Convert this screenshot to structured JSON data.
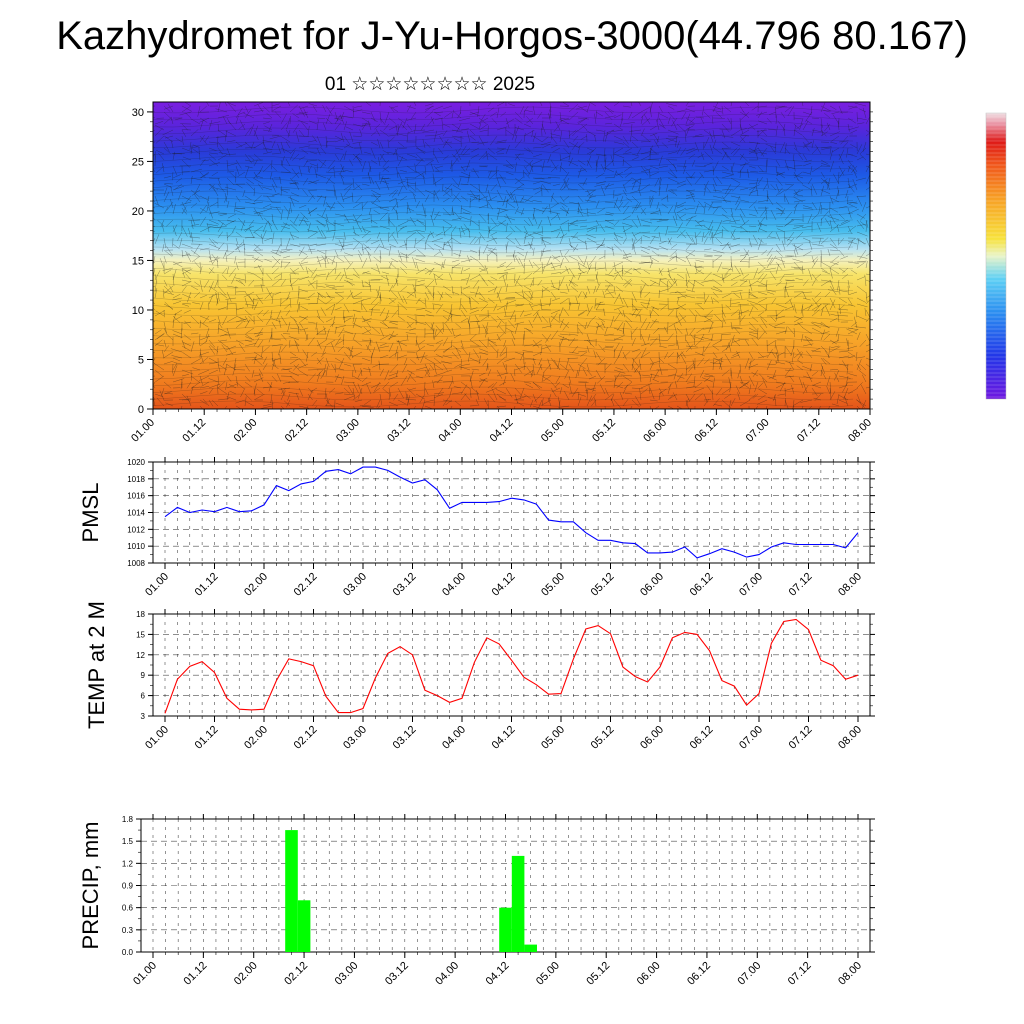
{
  "title": "Kazhydromet for J-Yu-Horgos-3000(44.796 80.167)",
  "subtitle": "01 ☆☆☆☆☆☆☆☆ 2025",
  "x_tick_labels": [
    "01.00",
    "01.12",
    "02.00",
    "02.12",
    "03.00",
    "03.12",
    "04.00",
    "04.12",
    "05.00",
    "05.12",
    "06.00",
    "06.12",
    "07.00",
    "07.12",
    "08.00"
  ],
  "chart_data": [
    {
      "type": "heatmap",
      "name": "cross-section",
      "x_categories": [
        "01.00",
        "01.12",
        "02.00",
        "02.12",
        "03.00",
        "03.12",
        "04.00",
        "04.12",
        "05.00",
        "05.12",
        "06.00",
        "06.12",
        "07.00",
        "07.12",
        "08.00"
      ],
      "y_ticks": [
        "0",
        "5",
        "10",
        "15",
        "20",
        "25",
        "30"
      ],
      "ylim": [
        0,
        31
      ],
      "colormap": [
        "#6a0fd8",
        "#3a2ee0",
        "#1f5ae8",
        "#2f8ef0",
        "#3cbcf0",
        "#9fdcf2",
        "#f5f2a8",
        "#f7e14a",
        "#f8c330",
        "#f7a227",
        "#f57f1f",
        "#e85a1a"
      ]
    },
    {
      "type": "line",
      "ylabel": "PMSL",
      "ylim": [
        1008,
        1020
      ],
      "y_ticks": [
        "1008",
        "1010",
        "1012",
        "1014",
        "1016",
        "1018",
        "1020"
      ],
      "color": "#0000ff",
      "values": [
        1013.5,
        1014.6,
        1014.0,
        1014.3,
        1014.1,
        1014.6,
        1014.1,
        1014.2,
        1014.9,
        1017.2,
        1016.6,
        1017.4,
        1017.7,
        1018.9,
        1019.1,
        1018.6,
        1019.4,
        1019.4,
        1019.0,
        1018.2,
        1017.5,
        1017.9,
        1016.7,
        1014.5,
        1015.2,
        1015.2,
        1015.2,
        1015.3,
        1015.7,
        1015.5,
        1015.0,
        1013.1,
        1012.9,
        1012.9,
        1011.6,
        1010.7,
        1010.7,
        1010.4,
        1010.3,
        1009.2,
        1009.2,
        1009.3,
        1009.9,
        1008.6,
        1009.1,
        1009.7,
        1009.3,
        1008.7,
        1009.0,
        1009.9,
        1010.4,
        1010.2,
        1010.2,
        1010.2,
        1010.2,
        1009.8,
        1011.6
      ]
    },
    {
      "type": "line",
      "ylabel": "TEMP at 2 M",
      "ylim": [
        3,
        18
      ],
      "y_ticks": [
        "3",
        "6",
        "9",
        "12",
        "15",
        "18"
      ],
      "color": "#ff0000",
      "values": [
        3.4,
        8.4,
        10.3,
        11.0,
        9.4,
        5.6,
        4.0,
        3.9,
        4.0,
        8.2,
        11.4,
        11.0,
        10.4,
        5.9,
        3.5,
        3.5,
        4.1,
        8.6,
        12.2,
        13.2,
        12.0,
        6.8,
        6.0,
        5.0,
        5.6,
        10.9,
        14.5,
        13.6,
        11.2,
        8.7,
        7.6,
        6.2,
        6.3,
        11.4,
        15.8,
        16.3,
        15.1,
        10.2,
        8.8,
        8.0,
        10.2,
        14.5,
        15.3,
        15.0,
        12.6,
        8.2,
        7.4,
        4.6,
        6.3,
        13.7,
        16.9,
        17.2,
        15.7,
        11.2,
        10.4,
        8.4,
        9.0
      ]
    },
    {
      "type": "bar",
      "ylabel": "PRECIP, mm",
      "ylim": [
        0,
        1.8
      ],
      "y_ticks": [
        "0.0",
        "0.3",
        "0.6",
        "0.9",
        "1.2",
        "1.5",
        "1.8"
      ],
      "color": "#00ff00",
      "values": [
        0,
        0,
        0,
        0,
        0,
        0,
        0,
        0,
        0,
        0,
        0,
        1.65,
        0.7,
        0,
        0,
        0,
        0,
        0,
        0,
        0,
        0,
        0,
        0,
        0,
        0,
        0,
        0,
        0,
        0.6,
        1.3,
        0.1,
        0,
        0,
        0,
        0,
        0,
        0,
        0,
        0,
        0,
        0,
        0,
        0,
        0,
        0,
        0,
        0,
        0,
        0,
        0,
        0,
        0,
        0,
        0,
        0,
        0,
        0
      ]
    }
  ]
}
